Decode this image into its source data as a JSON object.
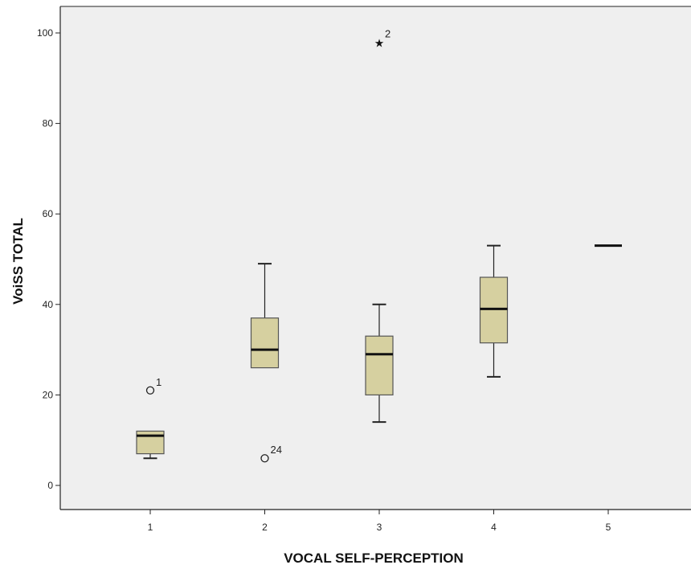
{
  "chart_data": {
    "type": "boxplot",
    "title": "",
    "xlabel": "VOCAL SELF-PERCEPTION",
    "ylabel": "VoiSS TOTAL",
    "ylim": [
      -5,
      107
    ],
    "yticks": [
      0,
      20,
      40,
      60,
      80,
      100
    ],
    "categories": [
      "1",
      "2",
      "3",
      "4",
      "5"
    ],
    "grid": false,
    "colors": {
      "plot_bg": "#efefef",
      "box_fill": "#d6d0a0",
      "box_stroke": "#555555",
      "axis": "#222222"
    },
    "boxes": [
      {
        "category": "1",
        "whisker_low": 6,
        "q1": 7,
        "median": 11,
        "q3": 12,
        "whisker_high": 12
      },
      {
        "category": "2",
        "whisker_low": 26,
        "q1": 26,
        "median": 30,
        "q3": 37,
        "whisker_high": 49
      },
      {
        "category": "3",
        "whisker_low": 14,
        "q1": 20,
        "median": 29,
        "q3": 33,
        "whisker_high": 40
      },
      {
        "category": "4",
        "whisker_low": 24,
        "q1": 31.5,
        "median": 39,
        "q3": 46,
        "whisker_high": 53
      },
      {
        "category": "5",
        "whisker_low": 53,
        "q1": 53,
        "median": 53,
        "q3": 53,
        "whisker_high": 53
      }
    ],
    "outliers": [
      {
        "category": "1",
        "value": 21,
        "label": "1",
        "marker": "circle"
      },
      {
        "category": "2",
        "value": 6,
        "label": "24",
        "marker": "circle"
      },
      {
        "category": "3",
        "value": 98,
        "label": "2",
        "marker": "star"
      }
    ]
  }
}
